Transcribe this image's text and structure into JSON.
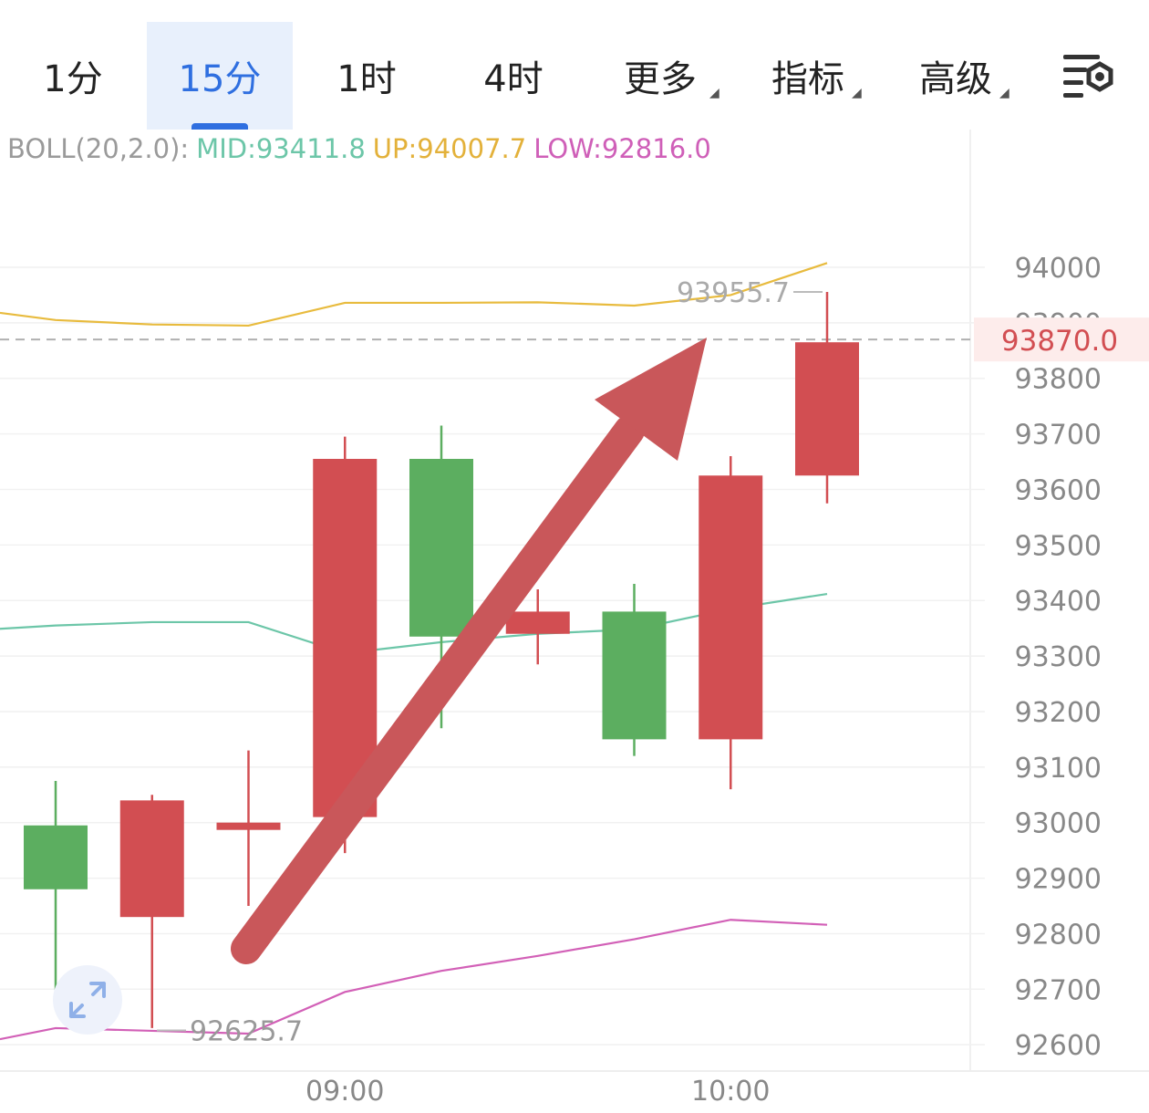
{
  "tabs": [
    {
      "label": "1分",
      "active": false,
      "dropdown": false
    },
    {
      "label": "15分",
      "active": true,
      "dropdown": false
    },
    {
      "label": "1时",
      "active": false,
      "dropdown": false
    },
    {
      "label": "4时",
      "active": false,
      "dropdown": false
    },
    {
      "label": "更多",
      "active": false,
      "dropdown": true
    },
    {
      "label": "指标",
      "active": false,
      "dropdown": true
    },
    {
      "label": "高级",
      "active": false,
      "dropdown": true
    }
  ],
  "settings_icon": "chart-settings-icon",
  "expand_icon": "expand-arrows-icon",
  "indicator": {
    "name": "BOLL(20,2.0):",
    "mid": "MID:93411.8",
    "up": "UP:94007.7",
    "low": "LOW:92816.0"
  },
  "colors": {
    "accent": "#2f6fe0",
    "up_candle": "#d24e52",
    "down_candle": "#5cae60",
    "mid_line": "#6cc6a8",
    "up_line": "#e8bb3e",
    "low_line": "#d260b7",
    "arrow": "#c9575a",
    "price_line": "#b0b0b0"
  },
  "chart_data": {
    "type": "candlestick",
    "y_ticks": [
      94000,
      93800,
      93700,
      93600,
      93500,
      93400,
      93300,
      93200,
      93100,
      93000,
      92900,
      92800,
      92700,
      92600
    ],
    "y_tick_hidden": "93900",
    "ylim": [
      92560,
      94140
    ],
    "x_labels": [
      {
        "label": "09:00",
        "index": 3
      },
      {
        "label": "10:00",
        "index": 7
      }
    ],
    "candles": [
      {
        "open": 92880,
        "close": 92995,
        "high": 93075,
        "low": 92680,
        "color": "green"
      },
      {
        "open": 93040,
        "close": 92830,
        "high": 93050,
        "low": 92630,
        "color": "red"
      },
      {
        "open": 93000,
        "close": 92990,
        "high": 93130,
        "low": 92850,
        "color": "red"
      },
      {
        "open": 93655,
        "close": 93010,
        "high": 93695,
        "low": 92945,
        "color": "red"
      },
      {
        "open": 93335,
        "close": 93655,
        "high": 93715,
        "low": 93170,
        "color": "green"
      },
      {
        "open": 93380,
        "close": 93340,
        "high": 93420,
        "low": 93285,
        "color": "red"
      },
      {
        "open": 93150,
        "close": 93380,
        "high": 93430,
        "low": 93120,
        "color": "green"
      },
      {
        "open": 93625,
        "close": 93150,
        "high": 93660,
        "low": 93060,
        "color": "red"
      },
      {
        "open": 93865,
        "close": 93625,
        "high": 93955.7,
        "low": 93575,
        "color": "red"
      }
    ],
    "boll_up": [
      93905,
      93897,
      93895,
      93936,
      93936,
      93937,
      93931,
      93950,
      94007.7
    ],
    "boll_mid": [
      93355,
      93361,
      93361,
      93305,
      93325,
      93340,
      93348,
      93385,
      93411.8
    ],
    "boll_low": [
      92630,
      92625,
      92620,
      92695,
      92733,
      92760,
      92790,
      92825,
      92816.0
    ],
    "mid_start": 93349,
    "up_start": 93918,
    "low_start": 92610,
    "current_price": "93870.0",
    "current_price_value": 93870,
    "max_label": "93955.7",
    "min_label": "92625.7"
  }
}
